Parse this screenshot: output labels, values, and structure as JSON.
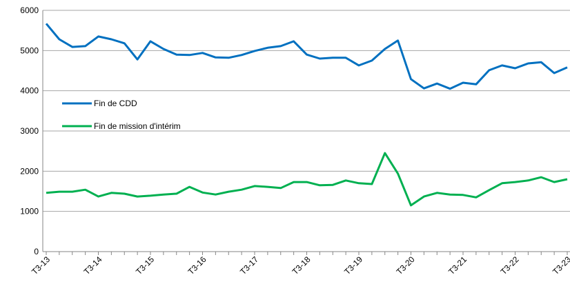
{
  "chart_data": {
    "type": "line",
    "categories": [
      "T3-13",
      null,
      null,
      null,
      "T3-14",
      null,
      null,
      null,
      "T3-15",
      null,
      null,
      null,
      "T3-16",
      null,
      null,
      null,
      "T3-17",
      null,
      null,
      null,
      "T3-18",
      null,
      null,
      null,
      "T3-19",
      null,
      null,
      null,
      "T3-20",
      null,
      null,
      null,
      "T3-21",
      null,
      null,
      null,
      "T3-22",
      null,
      null,
      null,
      "T3-23"
    ],
    "series": [
      {
        "name": "Fin de CDD",
        "color": "#0070c0",
        "values": [
          5670,
          5280,
          5090,
          5110,
          5350,
          5280,
          5180,
          4780,
          5230,
          5040,
          4900,
          4890,
          4940,
          4830,
          4820,
          4890,
          4990,
          5070,
          5110,
          5230,
          4900,
          4800,
          4820,
          4820,
          4630,
          4750,
          5040,
          5250,
          4290,
          4060,
          4180,
          4050,
          4200,
          4160,
          4510,
          4630,
          4560,
          4680,
          4710,
          4440,
          4580
        ]
      },
      {
        "name": "Fin de mission d'intérim",
        "color": "#00b050",
        "values": [
          1460,
          1490,
          1490,
          1540,
          1370,
          1460,
          1440,
          1370,
          1390,
          1420,
          1440,
          1610,
          1470,
          1420,
          1490,
          1540,
          1630,
          1610,
          1580,
          1730,
          1730,
          1650,
          1660,
          1770,
          1700,
          1680,
          2450,
          1940,
          1150,
          1370,
          1460,
          1420,
          1410,
          1350,
          1530,
          1700,
          1730,
          1770,
          1850,
          1730,
          1800
        ]
      }
    ],
    "ylim": [
      0,
      6000
    ],
    "yticks": [
      0,
      1000,
      2000,
      3000,
      4000,
      5000,
      6000
    ],
    "grid": true
  }
}
